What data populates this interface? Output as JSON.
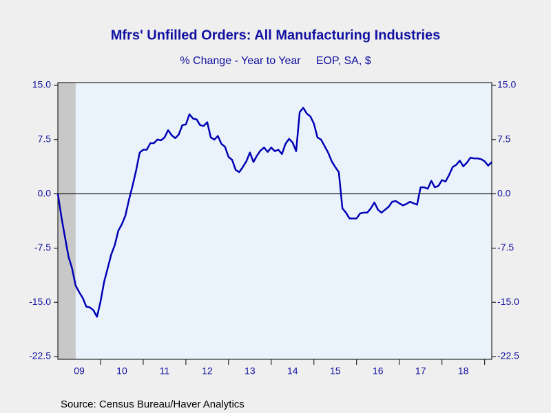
{
  "chart_data": {
    "type": "line",
    "title": "Mfrs' Unfilled Orders: All Manufacturing Industries",
    "subtitle": "% Change - Year to Year     EOP, SA, $",
    "source": "Source:  Census Bureau/Haver Analytics",
    "x": [
      2009,
      2009.083,
      2009.167,
      2009.25,
      2009.333,
      2009.417,
      2009.5,
      2009.583,
      2009.667,
      2009.75,
      2009.833,
      2009.917,
      2010,
      2010.083,
      2010.167,
      2010.25,
      2010.333,
      2010.417,
      2010.5,
      2010.583,
      2010.667,
      2010.75,
      2010.833,
      2010.917,
      2011,
      2011.083,
      2011.167,
      2011.25,
      2011.333,
      2011.417,
      2011.5,
      2011.583,
      2011.667,
      2011.75,
      2011.833,
      2011.917,
      2012,
      2012.083,
      2012.167,
      2012.25,
      2012.333,
      2012.417,
      2012.5,
      2012.583,
      2012.667,
      2012.75,
      2012.833,
      2012.917,
      2013,
      2013.083,
      2013.167,
      2013.25,
      2013.333,
      2013.417,
      2013.5,
      2013.583,
      2013.667,
      2013.75,
      2013.833,
      2013.917,
      2014,
      2014.083,
      2014.167,
      2014.25,
      2014.333,
      2014.417,
      2014.5,
      2014.583,
      2014.667,
      2014.75,
      2014.833,
      2014.917,
      2015,
      2015.083,
      2015.167,
      2015.25,
      2015.333,
      2015.417,
      2015.5,
      2015.583,
      2015.667,
      2015.75,
      2015.833,
      2015.917,
      2016,
      2016.083,
      2016.167,
      2016.25,
      2016.333,
      2016.417,
      2016.5,
      2016.583,
      2016.667,
      2016.75,
      2016.833,
      2016.917,
      2017,
      2017.083,
      2017.167,
      2017.25,
      2017.333,
      2017.417,
      2017.5,
      2017.583,
      2017.667,
      2017.75,
      2017.833,
      2017.917,
      2018,
      2018.083,
      2018.167,
      2018.25,
      2018.333,
      2018.417,
      2018.5,
      2018.583,
      2018.667,
      2018.75,
      2018.833,
      2018.917,
      2019,
      2019.083,
      2019.167
    ],
    "series": [
      {
        "color": "#0000b4",
        "values": [
          0,
          -3.2,
          -6.0,
          -8.7,
          -10.3,
          -12.7,
          -13.6,
          -14.4,
          -15.6,
          -15.7,
          -16.1,
          -17.0,
          -14.9,
          -12.2,
          -10.3,
          -8.4,
          -7.1,
          -5.1,
          -4.2,
          -3.0,
          -0.8,
          1.1,
          3.2,
          5.7,
          6.1,
          6.1,
          7.0,
          7.0,
          7.5,
          7.4,
          7.8,
          8.8,
          8.1,
          7.7,
          8.2,
          9.5,
          9.6,
          11.0,
          10.4,
          10.3,
          9.5,
          9.4,
          9.9,
          7.8,
          7.5,
          8.0,
          6.9,
          6.5,
          5.1,
          4.7,
          3.3,
          3.0,
          3.7,
          4.5,
          5.7,
          4.4,
          5.3,
          6.0,
          6.4,
          5.8,
          6.4,
          5.9,
          6.1,
          5.5,
          6.9,
          7.6,
          7.1,
          5.9,
          11.3,
          11.9,
          11.1,
          10.7,
          9.7,
          7.8,
          7.5,
          6.6,
          5.7,
          4.5,
          3.7,
          3.0,
          -2.0,
          -2.6,
          -3.4,
          -3.4,
          -3.4,
          -2.7,
          -2.6,
          -2.6,
          -2.0,
          -1.2,
          -2.2,
          -2.6,
          -2.2,
          -1.8,
          -1.1,
          -1.0,
          -1.3,
          -1.6,
          -1.4,
          -1.1,
          -1.3,
          -1.5,
          0.9,
          0.9,
          0.7,
          1.8,
          0.9,
          1.1,
          1.9,
          1.7,
          2.6,
          3.7,
          4.0,
          4.6,
          3.8,
          4.3,
          5.0,
          4.9,
          4.9,
          4.8,
          4.5,
          3.9,
          4.4
        ]
      }
    ],
    "xlim": [
      2009,
      2019.167
    ],
    "xticks": [
      {
        "value": 2009.5,
        "label": "09"
      },
      {
        "value": 2010.5,
        "label": "10"
      },
      {
        "value": 2011.5,
        "label": "11"
      },
      {
        "value": 2012.5,
        "label": "12"
      },
      {
        "value": 2013.5,
        "label": "13"
      },
      {
        "value": 2014.5,
        "label": "14"
      },
      {
        "value": 2015.5,
        "label": "15"
      },
      {
        "value": 2016.5,
        "label": "16"
      },
      {
        "value": 2017.5,
        "label": "17"
      },
      {
        "value": 2018.5,
        "label": "18"
      }
    ],
    "ylim": [
      -22.5,
      15
    ],
    "yticks": [
      -22.5,
      {
        "value": -15,
        "label": "-15.0"
      },
      -7.5,
      {
        "value": 0,
        "label": "0.0"
      },
      7.5,
      {
        "value": 15,
        "label": "15.0"
      }
    ],
    "y2lim": [
      -22.5,
      15
    ],
    "y2ticks": [
      -22.5,
      {
        "value": -15,
        "label": "-15.0"
      },
      -7.5,
      {
        "value": 0,
        "label": "0.0"
      },
      7.5,
      {
        "value": 15,
        "label": "15.0"
      }
    ],
    "shaded_periods": [
      [
        2009,
        2009.417
      ]
    ],
    "shade_color": "#c8c8c8",
    "plot_background": "#eaf3fc"
  }
}
